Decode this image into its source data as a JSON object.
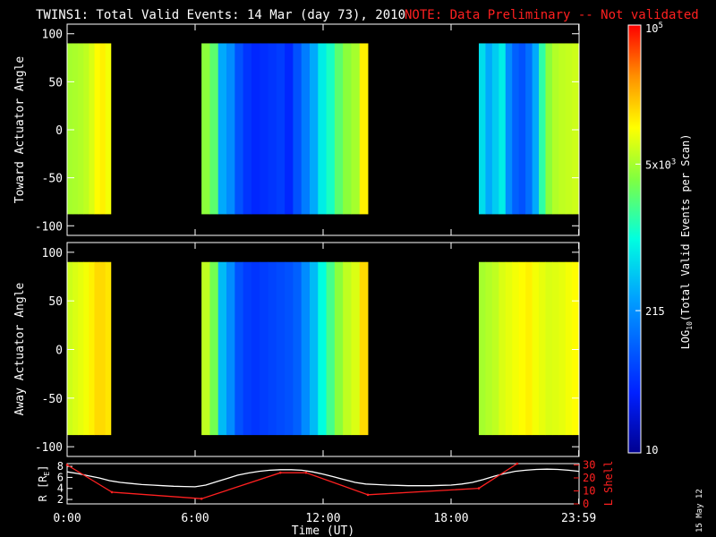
{
  "header": {
    "title": "TWINS1: Total Valid Events: 14 Mar (day  73), 2010",
    "note": "NOTE: Data Preliminary -- Not validated",
    "note_color": "#ff2020"
  },
  "footer": {
    "plot_date": "15 May 12"
  },
  "chart_data": [
    {
      "type": "heatmap",
      "panel": "toward",
      "ylabel": "Toward Actuator Angle",
      "ylim": [
        -110,
        110
      ],
      "xlim": [
        0,
        24
      ],
      "yticks": [
        100,
        50,
        0,
        -50,
        -100
      ],
      "angle_range": [
        -88,
        90
      ],
      "x_ticks": [
        "0:00",
        "6:00",
        "12:00",
        "18:00",
        "23:59"
      ],
      "colorscale": "rainbow (blue-cyan-green-yellow-orange-red), log",
      "data_segments": [
        {
          "start_hour": 0.0,
          "end_hour": 2.05,
          "profile": "yellow-green",
          "values_log10": [
            3.7,
            3.72,
            3.75,
            3.8,
            3.9,
            4.05,
            4.1,
            4.0
          ]
        },
        {
          "start_hour": 6.3,
          "end_hour": 14.1,
          "profile": "blue core",
          "values_log10": [
            3.6,
            3.4,
            2.5,
            2.3,
            1.9,
            1.7,
            1.6,
            1.65,
            1.7,
            1.75,
            1.6,
            1.9,
            2.2,
            2.5,
            2.9,
            3.1,
            3.4,
            3.6,
            3.7,
            4.1
          ]
        },
        {
          "start_hour": 19.3,
          "end_hour": 23.99,
          "profile": "mixed",
          "values_log10": [
            2.8,
            2.5,
            2.7,
            2.9,
            2.3,
            2.0,
            1.9,
            2.1,
            2.5,
            3.2,
            3.6,
            3.75,
            3.8,
            3.82,
            3.85
          ]
        }
      ]
    },
    {
      "type": "heatmap",
      "panel": "away",
      "ylabel": "Away Actuator Angle",
      "ylim": [
        -110,
        110
      ],
      "xlim": [
        0,
        24
      ],
      "yticks": [
        100,
        50,
        0,
        -50,
        -100
      ],
      "angle_range": [
        -88,
        90
      ],
      "x_ticks": [
        "0:00",
        "6:00",
        "12:00",
        "18:00",
        "23:59"
      ],
      "colorscale": "rainbow (blue-cyan-green-yellow-orange-red), log",
      "data_segments": [
        {
          "start_hour": 0.0,
          "end_hour": 2.05,
          "profile": "orange-yellow",
          "values_log10": [
            3.85,
            3.9,
            3.95,
            4.0,
            4.1,
            4.2,
            4.2,
            4.15
          ]
        },
        {
          "start_hour": 6.3,
          "end_hour": 14.1,
          "profile": "blue core",
          "values_log10": [
            3.8,
            3.5,
            2.6,
            2.3,
            1.9,
            1.75,
            1.7,
            1.75,
            1.8,
            1.85,
            1.9,
            2.0,
            2.3,
            2.6,
            3.0,
            3.3,
            3.6,
            3.8,
            3.9,
            4.2
          ]
        },
        {
          "start_hour": 19.3,
          "end_hour": 23.99,
          "profile": "yellow-orange",
          "values_log10": [
            3.7,
            3.75,
            3.8,
            3.9,
            3.95,
            4.0,
            4.05,
            4.1,
            4.0,
            3.95,
            3.9,
            3.92,
            3.95,
            4.0,
            4.05
          ]
        }
      ]
    },
    {
      "type": "line",
      "panel": "orbit",
      "xlabel": "Time (UT)",
      "x_ticks": [
        "0:00",
        "6:00",
        "12:00",
        "18:00",
        "23:59"
      ],
      "x_tick_hours": [
        0,
        6,
        12,
        18,
        23.983
      ],
      "xlim": [
        0,
        24
      ],
      "ylabel": "R [R",
      "ylabel_sub": "E",
      "ylabel_end": "]",
      "y2label": "L Shell",
      "ylim": [
        1.2,
        8.5
      ],
      "yticks": [
        2,
        4,
        6,
        8
      ],
      "y2lim": [
        0,
        31
      ],
      "y2ticks": [
        0,
        10,
        20,
        30
      ],
      "series": [
        {
          "name": "",
          "axis": "left",
          "color": "#ffffff",
          "x": [
            0,
            0.5,
            1.0,
            1.5,
            2.0,
            2.5,
            3.0,
            3.5,
            4.0,
            4.5,
            5.0,
            5.5,
            6.0,
            6.5,
            7.0,
            7.5,
            8.0,
            8.5,
            9.0,
            9.5,
            10.0,
            10.5,
            11.0,
            11.5,
            12.0,
            12.5,
            13.0,
            13.5,
            14.0,
            14.5,
            15.0,
            15.5,
            16.0,
            16.5,
            17.0,
            17.5,
            18.0,
            18.5,
            19.0,
            19.5,
            20.0,
            20.5,
            21.0,
            21.5,
            22.0,
            22.5,
            23.0,
            23.5,
            23.99
          ],
          "y": [
            7.0,
            6.7,
            6.3,
            5.9,
            5.4,
            5.1,
            4.9,
            4.7,
            4.6,
            4.5,
            4.4,
            4.35,
            4.3,
            4.6,
            5.2,
            5.8,
            6.4,
            6.8,
            7.1,
            7.3,
            7.4,
            7.4,
            7.3,
            7.0,
            6.6,
            6.1,
            5.6,
            5.1,
            4.8,
            4.7,
            4.6,
            4.55,
            4.5,
            4.5,
            4.5,
            4.55,
            4.6,
            4.8,
            5.1,
            5.6,
            6.2,
            6.7,
            7.1,
            7.3,
            7.45,
            7.5,
            7.45,
            7.3,
            7.1
          ]
        },
        {
          "name": "",
          "axis": "right",
          "color": "#ff2020",
          "x": [
            0,
            2.1,
            6.3,
            10.0,
            11.2,
            14.1,
            19.3,
            21.1
          ],
          "y": [
            30,
            9,
            4,
            24,
            24,
            7,
            12,
            31
          ]
        }
      ]
    },
    {
      "type": "colorbar",
      "label": "LOG",
      "label_sub": "10",
      "label_end": "(Total Valid Events per Scan)",
      "ticks": [
        {
          "text": "10",
          "sup": "5",
          "value_log10": 5
        },
        {
          "text": "5x10",
          "sup": "3",
          "value_log10": 3.7
        },
        {
          "text": "215",
          "sup": "",
          "value_log10": 2.33
        },
        {
          "text": "10",
          "sup": "",
          "value_log10": 1
        }
      ],
      "range_log10": [
        1,
        5
      ]
    }
  ]
}
